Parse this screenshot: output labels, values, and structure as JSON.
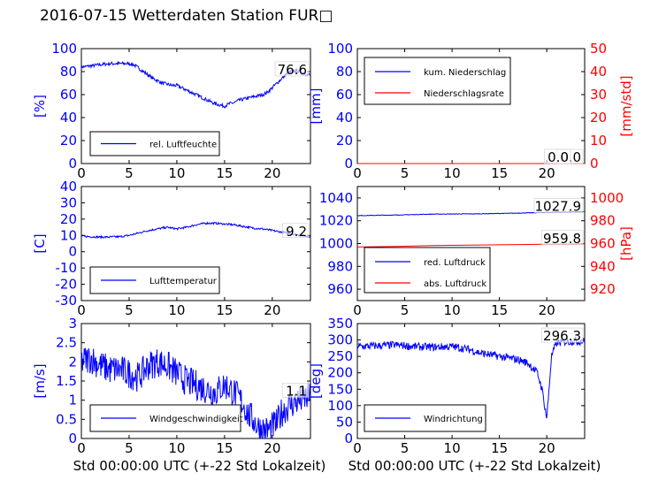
{
  "title": "2016-07-15 Wetterdaten Station FUR□",
  "chart_data": [
    {
      "type": "line",
      "ylabel": "[%]",
      "xlim": [
        0,
        24
      ],
      "ylim": [
        0,
        100
      ],
      "xticks": [
        0,
        5,
        10,
        15,
        20
      ],
      "yticks": [
        0,
        20,
        40,
        60,
        80,
        100
      ],
      "series": [
        {
          "name": "rel. Luftfeuchte",
          "color": "#0000ff",
          "x": [
            0,
            1,
            2,
            3,
            4,
            5,
            5.5,
            6,
            6.5,
            7,
            7.5,
            8,
            8.5,
            9,
            9.5,
            10,
            10.5,
            11,
            11.5,
            12,
            12.5,
            13,
            13.5,
            14,
            14.5,
            15,
            15.5,
            16,
            16.5,
            17,
            17.5,
            18,
            18.5,
            19,
            19.5,
            20,
            20.5,
            21,
            21.5,
            22,
            22.5,
            23,
            23.5,
            24
          ],
          "values": [
            84,
            85,
            86,
            87,
            87,
            87,
            86,
            83,
            80,
            77,
            74,
            72,
            70,
            69,
            68,
            68,
            66,
            64,
            62,
            60,
            58,
            56,
            54,
            52,
            51,
            50,
            52,
            53,
            55,
            56,
            57,
            58,
            59,
            60,
            62,
            66,
            70,
            74,
            78,
            80,
            81,
            79,
            78,
            77
          ],
          "noise": 1.5
        }
      ],
      "value_label": "76.6",
      "legend_pos": "bottom-left"
    },
    {
      "type": "line",
      "ylabel": "[mm]",
      "ylabel2": "[mm/std]",
      "xlim": [
        0,
        24
      ],
      "ylim": [
        0,
        100
      ],
      "ylim2": [
        0,
        50
      ],
      "xticks": [
        0,
        5,
        10,
        15,
        20
      ],
      "yticks": [
        0,
        20,
        40,
        60,
        80,
        100
      ],
      "yticks2": [
        0,
        10,
        20,
        30,
        40,
        50
      ],
      "series": [
        {
          "name": "kum. Niederschlag",
          "color": "#0000ff",
          "x": [
            0,
            24
          ],
          "values": [
            0,
            0
          ]
        },
        {
          "name": "Niederschlagsrate",
          "color": "#ff0000",
          "x": [
            0,
            24
          ],
          "values": [
            0,
            0
          ],
          "axis": "right"
        }
      ],
      "value_label": "0.0",
      "value_label2": "0.0",
      "legend_pos": "top-left"
    },
    {
      "type": "line",
      "ylabel": "[C]",
      "xlim": [
        0,
        24
      ],
      "ylim": [
        -30,
        40
      ],
      "xticks": [
        0,
        5,
        10,
        15,
        20
      ],
      "yticks": [
        -30,
        -20,
        -10,
        0,
        10,
        20,
        30,
        40
      ],
      "series": [
        {
          "name": "Lufttemperatur",
          "color": "#0000ff",
          "x": [
            0,
            1,
            2,
            3,
            4,
            5,
            6,
            7,
            8,
            9,
            10,
            11,
            12,
            13,
            14,
            15,
            16,
            17,
            18,
            19,
            20,
            21,
            22,
            23,
            24
          ],
          "values": [
            9.5,
            9.2,
            9,
            9,
            9.2,
            10,
            11.5,
            13,
            14,
            15,
            14,
            15,
            16.5,
            17.5,
            17.5,
            17,
            16.5,
            15.5,
            14.5,
            14,
            13,
            12,
            11,
            10,
            9.2
          ],
          "noise": 0.6
        }
      ],
      "value_label": "9.2",
      "legend_pos": "bottom-left"
    },
    {
      "type": "line",
      "ylabel2": "[hPa]",
      "xlim": [
        0,
        24
      ],
      "ylim": [
        950,
        1050
      ],
      "ylim2": [
        910,
        1010
      ],
      "xticks": [
        0,
        5,
        10,
        15,
        20
      ],
      "yticks": [
        960,
        980,
        1000,
        1020,
        1040
      ],
      "yticks2": [
        920,
        940,
        960,
        980,
        1000
      ],
      "series": [
        {
          "name": "red. Luftdruck",
          "color": "#0000ff",
          "x": [
            0,
            4,
            8,
            12,
            16,
            20,
            24
          ],
          "values": [
            1024.5,
            1025,
            1025.8,
            1026,
            1026.5,
            1027.3,
            1027.9
          ],
          "noise": 0.25
        },
        {
          "name": "abs. Luftdruck",
          "color": "#ff0000",
          "axis": "right",
          "x": [
            0,
            4,
            8,
            12,
            16,
            20,
            24
          ],
          "values": [
            957,
            957.5,
            958.2,
            958.7,
            959,
            959.4,
            959.8
          ]
        }
      ],
      "value_label": "1027.9",
      "value_label2": "959.8",
      "legend_pos": "bottom-left"
    },
    {
      "type": "line",
      "ylabel": "[m/s]",
      "xlabel": "Std 00:00:00 UTC (+-22 Std Lokalzeit)",
      "xlim": [
        0,
        24
      ],
      "ylim": [
        0,
        3
      ],
      "xticks": [
        0,
        5,
        10,
        15,
        20
      ],
      "yticks": [
        0.0,
        0.5,
        1.0,
        1.5,
        2.0,
        2.5,
        3.0
      ],
      "series": [
        {
          "name": "Windgeschwindigkeit",
          "color": "#0000ff",
          "x": [
            0,
            1,
            2,
            3,
            4,
            5,
            6,
            7,
            8,
            9,
            10,
            11,
            12,
            13,
            14,
            15,
            16,
            17,
            17.5,
            18,
            18.5,
            19,
            19.5,
            20,
            20.5,
            21,
            22,
            23,
            24
          ],
          "values": [
            2.0,
            2.1,
            1.9,
            1.8,
            1.8,
            1.7,
            1.6,
            1.9,
            2.0,
            1.9,
            1.7,
            1.5,
            1.4,
            1.3,
            1.2,
            1.4,
            1.2,
            0.9,
            0.6,
            0.5,
            0.3,
            0.25,
            0.2,
            0.3,
            0.4,
            0.7,
            0.9,
            1.0,
            1.1
          ],
          "noise": 0.4
        }
      ],
      "value_label": "1.1",
      "legend_pos": "bottom-left"
    },
    {
      "type": "line",
      "ylabel": "[deg]",
      "xlabel": "Std 00:00:00 UTC (+-22 Std Lokalzeit)",
      "xlim": [
        0,
        24
      ],
      "ylim": [
        0,
        350
      ],
      "xticks": [
        0,
        5,
        10,
        15,
        20
      ],
      "yticks": [
        0,
        50,
        100,
        150,
        200,
        250,
        300,
        350
      ],
      "series": [
        {
          "name": "Windrichtung",
          "color": "#0000ff",
          "x": [
            0,
            2,
            4,
            6,
            8,
            10,
            11,
            12,
            13,
            14,
            15,
            16,
            17,
            18,
            19,
            19.5,
            20,
            20.5,
            21,
            22,
            23,
            24
          ],
          "values": [
            280,
            282,
            285,
            280,
            278,
            280,
            275,
            270,
            260,
            255,
            250,
            245,
            240,
            230,
            200,
            150,
            60,
            250,
            290,
            295,
            296,
            296
          ],
          "noise": 12
        }
      ],
      "value_label": "296.3",
      "legend_pos": "bottom-left"
    }
  ]
}
